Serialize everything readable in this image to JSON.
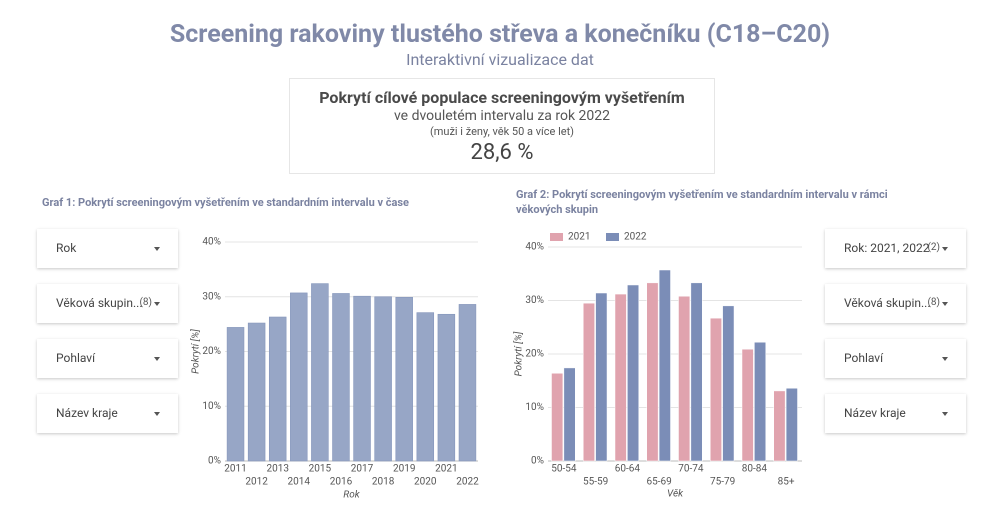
{
  "header": {
    "title": "Screening rakoviny tlustého střeva a konečníku (C18–C20)",
    "subtitle": "Interaktivní vizualizace dat"
  },
  "kpi": {
    "title": "Pokrytí cílové populace screeningovým vyšetřením",
    "subtitle": "ve dvouletém intervalu za rok 2022",
    "note": "(muži i ženy, věk 50 a více let)",
    "value": "28,6 %"
  },
  "filters_left": [
    {
      "label": "Rok"
    },
    {
      "label": "Věková skupin...",
      "count": "(8)"
    },
    {
      "label": "Pohlaví"
    },
    {
      "label": "Název kraje"
    }
  ],
  "filters_right": [
    {
      "label": "Rok: 2021, 2022",
      "count": "(2)"
    },
    {
      "label": "Věková skupin...",
      "count": "(8)"
    },
    {
      "label": "Pohlaví"
    },
    {
      "label": "Název kraje"
    }
  ],
  "chart_data": [
    {
      "type": "bar",
      "title": "Graf 1: Pokrytí screeningovým vyšetřením ve standardním intervalu v čase",
      "x_label": "Rok",
      "y_label": "Pokrytí [%]",
      "categories": [
        "2011",
        "2012",
        "2013",
        "2014",
        "2015",
        "2016",
        "2017",
        "2018",
        "2019",
        "2020",
        "2021",
        "2022"
      ],
      "values": [
        24.4,
        25.2,
        26.3,
        30.7,
        32.4,
        30.6,
        30.1,
        30.0,
        29.9,
        27.1,
        26.8,
        28.6
      ],
      "color": "#97a6c6",
      "ylim": [
        0,
        40
      ],
      "yticks": [
        {
          "value": 0,
          "label": "0%"
        },
        {
          "value": 10,
          "label": "10%"
        },
        {
          "value": 20,
          "label": "20%"
        },
        {
          "value": 30,
          "label": "30%"
        },
        {
          "value": 40,
          "label": "40%"
        }
      ],
      "grid": true
    },
    {
      "type": "grouped_bar",
      "title": "Graf 2: Pokrytí screeningovým vyšetřením ve standardním intervalu v rámci věkových skupin",
      "x_label": "Věk",
      "y_label": "Pokrytí [%]",
      "categories": [
        "50-54",
        "55-59",
        "60-64",
        "65-69",
        "70-74",
        "75-79",
        "80-84",
        "85+"
      ],
      "series": [
        {
          "name": "2021",
          "color": "#e0a3ae",
          "values": [
            16.4,
            29.5,
            31.2,
            33.3,
            30.8,
            26.7,
            20.9,
            13.1
          ]
        },
        {
          "name": "2022",
          "color": "#7b8db7",
          "values": [
            17.4,
            31.4,
            32.9,
            35.7,
            33.3,
            29.0,
            22.2,
            13.6
          ]
        }
      ],
      "ylim": [
        0,
        40
      ],
      "yticks": [
        {
          "value": 0,
          "label": "0%"
        },
        {
          "value": 10,
          "label": "10%"
        },
        {
          "value": 20,
          "label": "20%"
        },
        {
          "value": 30,
          "label": "30%"
        },
        {
          "value": 40,
          "label": "40%"
        }
      ],
      "grid": true,
      "legend": "top-left"
    }
  ]
}
